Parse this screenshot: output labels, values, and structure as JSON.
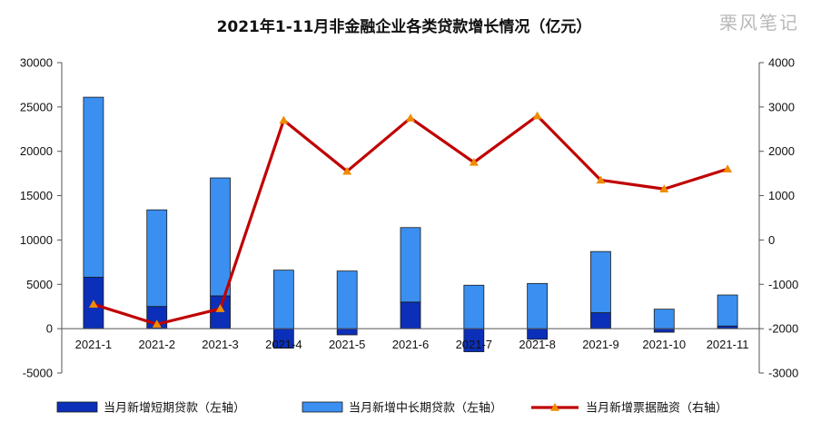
{
  "watermark": "栗风笔记",
  "chart_data": {
    "type": "bar",
    "title": "2021年1-11月非金融企业各类贷款增长情况（亿元）",
    "categories": [
      "2021-1",
      "2021-2",
      "2021-3",
      "2021-4",
      "2021-5",
      "2021-6",
      "2021-7",
      "2021-8",
      "2021-9",
      "2021-10",
      "2021-11"
    ],
    "stacked": true,
    "series": [
      {
        "name": "当月新增短期贷款（左轴）",
        "axis": "left",
        "kind": "bar",
        "color": "#0b2fb8",
        "values": [
          5800,
          2500,
          3700,
          -2200,
          -700,
          3000,
          -2600,
          -1200,
          1800,
          -400,
          300
        ]
      },
      {
        "name": "当月新增中长期贷款（左轴）",
        "axis": "left",
        "kind": "bar",
        "color": "#3a8ff0",
        "values": [
          20300,
          10900,
          13300,
          6600,
          6500,
          8400,
          4900,
          5100,
          6900,
          2200,
          3500
        ]
      },
      {
        "name": "当月新增票据融资（右轴）",
        "axis": "right",
        "kind": "line",
        "color": "#c00000",
        "marker_color": "#f08c00",
        "values": [
          -1450,
          -1900,
          -1550,
          2700,
          1550,
          2750,
          1750,
          2800,
          1350,
          1150,
          1600
        ]
      }
    ],
    "yleft": {
      "min": -5000,
      "max": 30000,
      "ticks": [
        "-5000",
        "0",
        "5000",
        "10000",
        "15000",
        "20000",
        "25000",
        "30000"
      ]
    },
    "yright": {
      "min": -3000,
      "max": 4000,
      "ticks": [
        "-3000",
        "-2000",
        "-1000",
        "0",
        "1000",
        "2000",
        "3000",
        "4000"
      ]
    },
    "legend_position": "bottom",
    "grid": false
  }
}
